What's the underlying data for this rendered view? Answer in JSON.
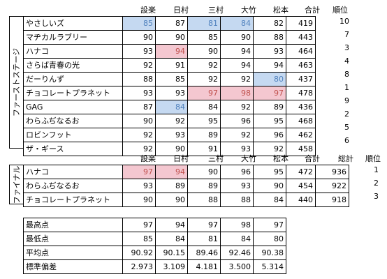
{
  "first_stage": {
    "label": "ファーストステージ",
    "headers": [
      "設楽",
      "日村",
      "三村",
      "大竹",
      "松本",
      "合計",
      "順位"
    ],
    "rows": [
      {
        "name": "やさしいズ",
        "scores": [
          "85",
          "87",
          "81",
          "84",
          "82"
        ],
        "total": "419",
        "rank": "10"
      },
      {
        "name": "マヂカルラブリー",
        "scores": [
          "90",
          "90",
          "85",
          "90",
          "88"
        ],
        "total": "443",
        "rank": "7"
      },
      {
        "name": "ハナコ",
        "scores": [
          "93",
          "94",
          "90",
          "94",
          "93"
        ],
        "total": "464",
        "rank": "3"
      },
      {
        "name": "さらば青春の光",
        "scores": [
          "92",
          "91",
          "92",
          "94",
          "94"
        ],
        "total": "463",
        "rank": "4"
      },
      {
        "name": "だーりんず",
        "scores": [
          "88",
          "85",
          "92",
          "92",
          "80"
        ],
        "total": "437",
        "rank": "8"
      },
      {
        "name": "チョコレートプラネット",
        "scores": [
          "93",
          "93",
          "97",
          "98",
          "97"
        ],
        "total": "478",
        "rank": "1"
      },
      {
        "name": "GAG",
        "scores": [
          "87",
          "84",
          "84",
          "92",
          "89"
        ],
        "total": "436",
        "rank": "9"
      },
      {
        "name": "わらふぢなるお",
        "scores": [
          "90",
          "92",
          "95",
          "96",
          "95"
        ],
        "total": "468",
        "rank": "2"
      },
      {
        "name": "ロビンフット",
        "scores": [
          "92",
          "93",
          "89",
          "92",
          "96"
        ],
        "total": "462",
        "rank": "5"
      },
      {
        "name": "ザ・ギース",
        "scores": [
          "92",
          "90",
          "91",
          "93",
          "92"
        ],
        "total": "458",
        "rank": "6"
      }
    ]
  },
  "final_stage": {
    "label": "ファイナル",
    "headers": [
      "設楽",
      "日村",
      "三村",
      "大竹",
      "松本",
      "合計",
      "総計",
      "順位"
    ],
    "rows": [
      {
        "name": "ハナコ",
        "scores": [
          "97",
          "94",
          "90",
          "96",
          "95"
        ],
        "total": "472",
        "grand_total": "936",
        "rank": "1"
      },
      {
        "name": "わらふぢなるお",
        "scores": [
          "93",
          "89",
          "89",
          "93",
          "90"
        ],
        "total": "454",
        "grand_total": "922",
        "rank": "2"
      },
      {
        "name": "チョコレートプラネット",
        "scores": [
          "90",
          "90",
          "88",
          "88",
          "84"
        ],
        "total": "440",
        "grand_total": "918",
        "rank": "3"
      }
    ]
  },
  "stats": {
    "rows": [
      {
        "label": "最高点",
        "values": [
          "97",
          "94",
          "97",
          "98",
          "97"
        ]
      },
      {
        "label": "最低点",
        "values": [
          "85",
          "84",
          "81",
          "84",
          "80"
        ]
      },
      {
        "label": "平均点",
        "values": [
          "90.92",
          "90.15",
          "89.46",
          "92.46",
          "90.38"
        ]
      },
      {
        "label": "標準偏差",
        "values": [
          "2.973",
          "3.109",
          "4.181",
          "3.500",
          "5.314"
        ]
      }
    ]
  },
  "colors": {
    "low_highlight_bg": "#c5d9f1",
    "low_highlight_text": "#4f81bd",
    "high_highlight_bg": "#f4c7d0",
    "high_highlight_text": "#c0504d"
  }
}
